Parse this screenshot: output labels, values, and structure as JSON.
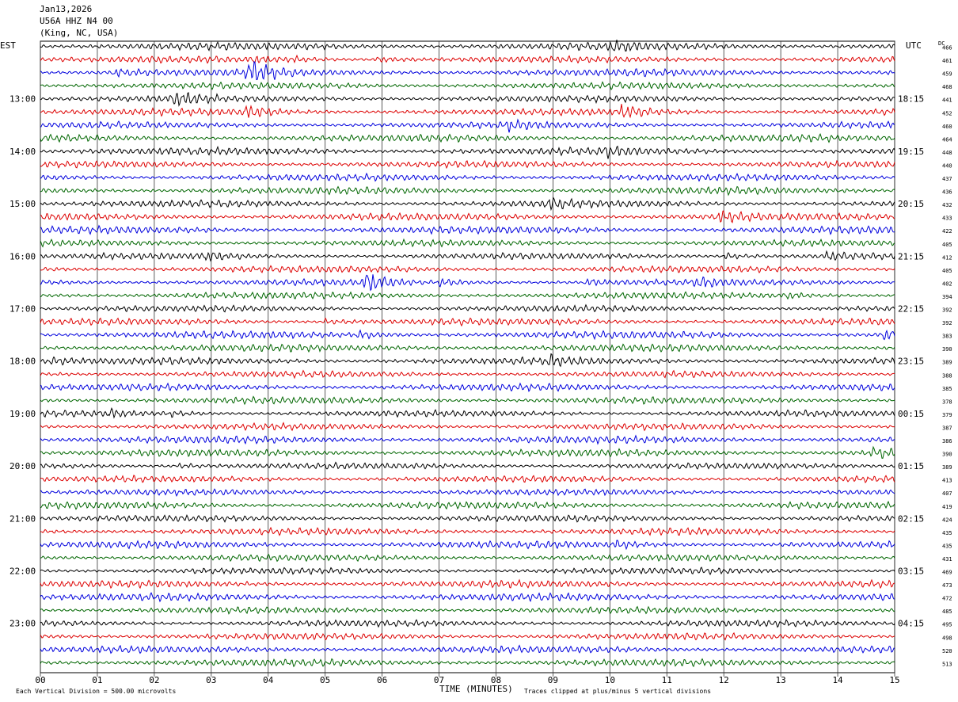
{
  "header": {
    "date": "Jan13,2026",
    "station": "U56A HHZ N4 00",
    "location": "(King, NC, USA)"
  },
  "left_timezone": "EST",
  "right_timezone": "UTC",
  "dc_header": "DC",
  "footer": {
    "scale_note": "Each Vertical Division =  500.00 microvolts",
    "xlabel": "TIME (MINUTES)",
    "clip_note": "Traces clipped at plus/minus 5 vertical divisions"
  },
  "colors": {
    "trace_cycle": [
      "#000000",
      "#dd0000",
      "#0000dd",
      "#006600"
    ],
    "grid": "#000000"
  },
  "chart_data": {
    "type": "line",
    "xlabel": "TIME (MINUTES)",
    "x_ticks": [
      "00",
      "01",
      "02",
      "03",
      "04",
      "05",
      "06",
      "07",
      "08",
      "09",
      "10",
      "11",
      "12",
      "13",
      "14",
      "15"
    ],
    "xlim": [
      0,
      15
    ],
    "rows_per_hour": 4,
    "left_hour_labels": [
      "13:00",
      "14:00",
      "15:00",
      "16:00",
      "17:00",
      "18:00",
      "19:00",
      "20:00",
      "21:00",
      "22:00",
      "23:00"
    ],
    "right_hour_labels": [
      "18:15",
      "19:15",
      "20:15",
      "21:15",
      "22:15",
      "23:15",
      "00:15",
      "01:15",
      "02:15",
      "03:15",
      "04:15"
    ],
    "dc_offsets": [
      466,
      461,
      459,
      468,
      441,
      452,
      460,
      464,
      448,
      440,
      437,
      436,
      432,
      433,
      422,
      405,
      412,
      405,
      402,
      394,
      392,
      392,
      383,
      390,
      389,
      388,
      385,
      378,
      379,
      387,
      386,
      390,
      389,
      413,
      407,
      419,
      424,
      435,
      435,
      431,
      469,
      473,
      472,
      485,
      495,
      498,
      520,
      513
    ],
    "events": [
      {
        "row": 0,
        "minute": 10.0,
        "amp": 1.0
      },
      {
        "row": 1,
        "minute": 4.4,
        "amp": 1.0
      },
      {
        "row": 1,
        "minute": 5.9,
        "amp": 2.2
      },
      {
        "row": 1,
        "minute": 3.7,
        "amp": 1.0
      },
      {
        "row": 2,
        "minute": 1.3,
        "amp": 1.6
      },
      {
        "row": 2,
        "minute": 3.65,
        "amp": 3.0
      },
      {
        "row": 4,
        "minute": 2.3,
        "amp": 2.2
      },
      {
        "row": 5,
        "minute": 3.6,
        "amp": 1.8
      },
      {
        "row": 5,
        "minute": 10.2,
        "amp": 2.0
      },
      {
        "row": 6,
        "minute": 8.2,
        "amp": 1.2
      },
      {
        "row": 8,
        "minute": 9.9,
        "amp": 1.1
      },
      {
        "row": 12,
        "minute": 8.9,
        "amp": 1.2
      },
      {
        "row": 13,
        "minute": 11.9,
        "amp": 1.8
      },
      {
        "row": 16,
        "minute": 2.9,
        "amp": 1.3
      },
      {
        "row": 16,
        "minute": 12.0,
        "amp": 2.2
      },
      {
        "row": 16,
        "minute": 13.8,
        "amp": 1.5
      },
      {
        "row": 18,
        "minute": 5.7,
        "amp": 3.0
      },
      {
        "row": 18,
        "minute": 7.0,
        "amp": 1.3
      },
      {
        "row": 18,
        "minute": 9.6,
        "amp": 1.5
      },
      {
        "row": 18,
        "minute": 11.5,
        "amp": 1.3
      },
      {
        "row": 19,
        "minute": 13.1,
        "amp": 1.2
      },
      {
        "row": 21,
        "minute": 5.0,
        "amp": 1.3
      },
      {
        "row": 22,
        "minute": 5.6,
        "amp": 1.3
      },
      {
        "row": 22,
        "minute": 14.8,
        "amp": 2.0
      },
      {
        "row": 24,
        "minute": 0.15,
        "amp": 1.1
      },
      {
        "row": 24,
        "minute": 8.9,
        "amp": 1.1
      },
      {
        "row": 28,
        "minute": 1.2,
        "amp": 1.1
      },
      {
        "row": 28,
        "minute": 2.3,
        "amp": 1.1
      },
      {
        "row": 31,
        "minute": 14.6,
        "amp": 1.8
      },
      {
        "row": 32,
        "minute": 2.4,
        "amp": 1.5
      },
      {
        "row": 38,
        "minute": 10.1,
        "amp": 1.0
      }
    ]
  }
}
